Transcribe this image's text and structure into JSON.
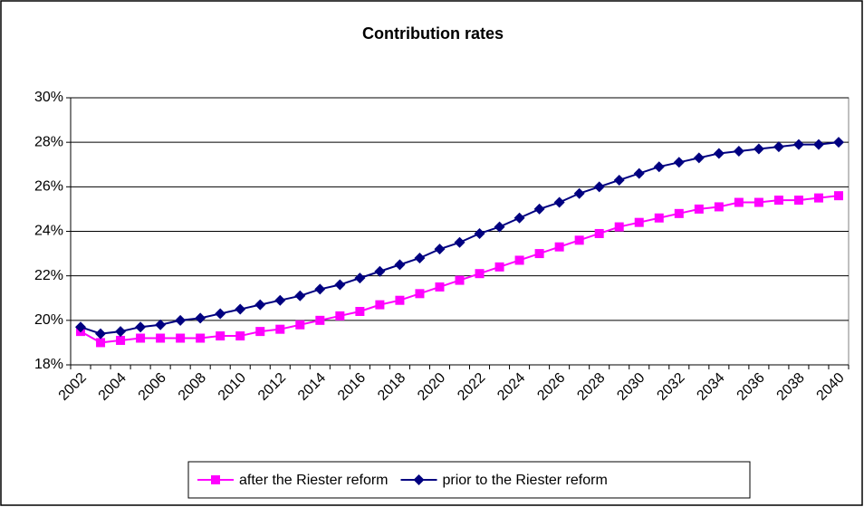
{
  "chart_data": {
    "type": "line",
    "title": "Contribution rates",
    "categories": [
      2002,
      null,
      2004,
      null,
      2006,
      null,
      2008,
      null,
      2010,
      null,
      2012,
      null,
      2014,
      null,
      2016,
      null,
      2018,
      null,
      2020,
      null,
      2022,
      null,
      2024,
      null,
      2026,
      null,
      2028,
      null,
      2030,
      null,
      2032,
      null,
      2034,
      null,
      2036,
      null,
      2038,
      null,
      2040
    ],
    "series": [
      {
        "name": "after the Riester reform",
        "color": "#ff00ff",
        "marker": "square",
        "values": [
          19.5,
          19.0,
          19.1,
          19.2,
          19.2,
          19.2,
          19.2,
          19.3,
          19.3,
          19.5,
          19.6,
          19.8,
          20.0,
          20.2,
          20.4,
          20.7,
          20.9,
          21.2,
          21.5,
          21.8,
          22.1,
          22.4,
          22.7,
          23.0,
          23.3,
          23.6,
          23.9,
          24.2,
          24.4,
          24.6,
          24.8,
          25.0,
          25.1,
          25.3,
          25.3,
          25.4,
          25.4,
          25.5,
          25.6
        ]
      },
      {
        "name": "prior to the Riester reform",
        "color": "#000080",
        "marker": "diamond",
        "values": [
          19.7,
          19.4,
          19.5,
          19.7,
          19.8,
          20.0,
          20.1,
          20.3,
          20.5,
          20.7,
          20.9,
          21.1,
          21.4,
          21.6,
          21.9,
          22.2,
          22.5,
          22.8,
          23.2,
          23.5,
          23.9,
          24.2,
          24.6,
          25.0,
          25.3,
          25.7,
          26.0,
          26.3,
          26.6,
          26.9,
          27.1,
          27.3,
          27.5,
          27.6,
          27.7,
          27.8,
          27.9,
          27.9,
          28.0
        ]
      }
    ],
    "ylim": [
      18,
      30
    ],
    "yticks": [
      {
        "value": 18,
        "label": "18%"
      },
      {
        "value": 20,
        "label": "20%"
      },
      {
        "value": 22,
        "label": "22%"
      },
      {
        "value": 24,
        "label": "24%"
      },
      {
        "value": 26,
        "label": "26%"
      },
      {
        "value": 28,
        "label": "28%"
      },
      {
        "value": 30,
        "label": "30%"
      }
    ],
    "grid": true,
    "legend": "bottom"
  }
}
